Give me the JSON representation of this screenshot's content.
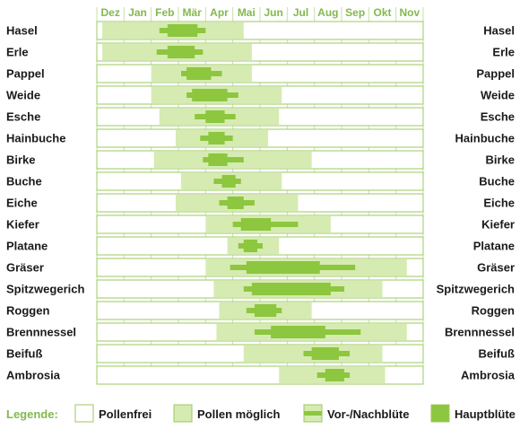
{
  "colors": {
    "frame": "#9bc85f",
    "possible": "#d6ebb1",
    "main": "#8dc63f",
    "month_text": "#83b94c",
    "label_text": "#1a1a1a"
  },
  "chart_data": {
    "type": "range-bar",
    "title": "",
    "months": [
      "Dez",
      "Jan",
      "Feb",
      "Mär",
      "Apr",
      "Mai",
      "Jun",
      "Jul",
      "Aug",
      "Sep",
      "Okt",
      "Nov"
    ],
    "plants": [
      {
        "name": "Hasel",
        "possible": [
          0.2,
          5.4
        ],
        "pre_post": [
          2.3,
          4.0
        ],
        "main": [
          2.6,
          3.7
        ]
      },
      {
        "name": "Erle",
        "possible": [
          0.2,
          5.7
        ],
        "pre_post": [
          2.2,
          3.9
        ],
        "main": [
          2.6,
          3.6
        ]
      },
      {
        "name": "Pappel",
        "possible": [
          2.0,
          5.7
        ],
        "pre_post": [
          3.1,
          4.6
        ],
        "main": [
          3.3,
          4.2
        ]
      },
      {
        "name": "Weide",
        "possible": [
          2.0,
          6.8
        ],
        "pre_post": [
          3.3,
          5.2
        ],
        "main": [
          3.5,
          4.8
        ]
      },
      {
        "name": "Esche",
        "possible": [
          2.3,
          6.7
        ],
        "pre_post": [
          3.6,
          5.1
        ],
        "main": [
          4.0,
          4.7
        ]
      },
      {
        "name": "Hainbuche",
        "possible": [
          2.9,
          6.3
        ],
        "pre_post": [
          3.8,
          5.0
        ],
        "main": [
          4.1,
          4.7
        ]
      },
      {
        "name": "Birke",
        "possible": [
          2.1,
          7.9
        ],
        "pre_post": [
          3.9,
          5.4
        ],
        "main": [
          4.1,
          4.8
        ]
      },
      {
        "name": "Buche",
        "possible": [
          3.1,
          6.8
        ],
        "pre_post": [
          4.3,
          5.3
        ],
        "main": [
          4.6,
          5.1
        ]
      },
      {
        "name": "Eiche",
        "possible": [
          2.9,
          7.4
        ],
        "pre_post": [
          4.5,
          5.8
        ],
        "main": [
          4.8,
          5.4
        ]
      },
      {
        "name": "Kiefer",
        "possible": [
          4.0,
          8.6
        ],
        "pre_post": [
          5.0,
          7.4
        ],
        "main": [
          5.3,
          6.4
        ]
      },
      {
        "name": "Platane",
        "possible": [
          4.8,
          6.7
        ],
        "pre_post": [
          5.2,
          6.1
        ],
        "main": [
          5.4,
          5.9
        ]
      },
      {
        "name": "Gräser",
        "possible": [
          4.0,
          11.4
        ],
        "pre_post": [
          4.9,
          9.5
        ],
        "main": [
          5.5,
          8.2
        ]
      },
      {
        "name": "Spitzwegerich",
        "possible": [
          4.3,
          10.5
        ],
        "pre_post": [
          5.4,
          9.1
        ],
        "main": [
          5.7,
          8.6
        ]
      },
      {
        "name": "Roggen",
        "possible": [
          4.5,
          7.9
        ],
        "pre_post": [
          5.5,
          6.8
        ],
        "main": [
          5.8,
          6.6
        ]
      },
      {
        "name": "Brennnessel",
        "possible": [
          4.4,
          11.4
        ],
        "pre_post": [
          5.8,
          9.7
        ],
        "main": [
          6.4,
          8.4
        ]
      },
      {
        "name": "Beifuß",
        "possible": [
          5.4,
          10.5
        ],
        "pre_post": [
          7.6,
          9.3
        ],
        "main": [
          7.9,
          8.9
        ]
      },
      {
        "name": "Ambrosia",
        "possible": [
          6.7,
          10.6
        ],
        "pre_post": [
          8.1,
          9.3
        ],
        "main": [
          8.4,
          9.1
        ]
      }
    ]
  },
  "legend": {
    "title": "Legende:",
    "items": [
      {
        "kind": "free",
        "label": "Pollenfrei"
      },
      {
        "kind": "possible",
        "label": "Pollen möglich"
      },
      {
        "kind": "prepost",
        "label": "Vor-/Nachblüte"
      },
      {
        "kind": "main",
        "label": "Hauptblüte"
      }
    ]
  }
}
